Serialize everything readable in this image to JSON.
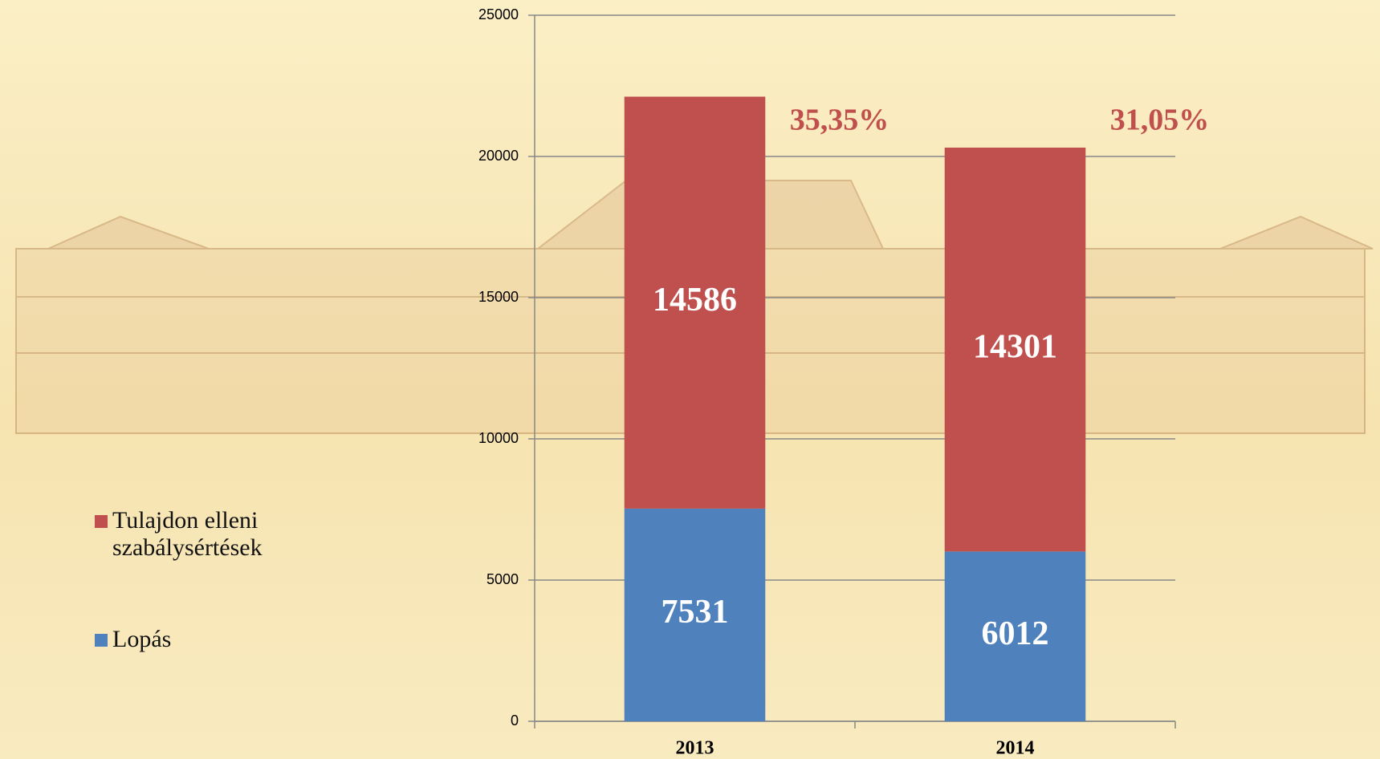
{
  "chart_data": {
    "type": "stacked_bar",
    "categories": [
      "2013",
      "2014"
    ],
    "series": [
      {
        "name": "Lopás",
        "color": "#4f81bd",
        "values": [
          7531,
          6012
        ]
      },
      {
        "name": "Tulajdon elleni szabálysértések",
        "color": "#c0504d",
        "values": [
          14586,
          14301
        ]
      }
    ],
    "annotations": [
      "35,35%",
      "31,05%"
    ],
    "ylim": [
      0,
      25000
    ],
    "yticks": [
      0,
      5000,
      10000,
      15000,
      20000,
      25000
    ],
    "grid": true
  }
}
